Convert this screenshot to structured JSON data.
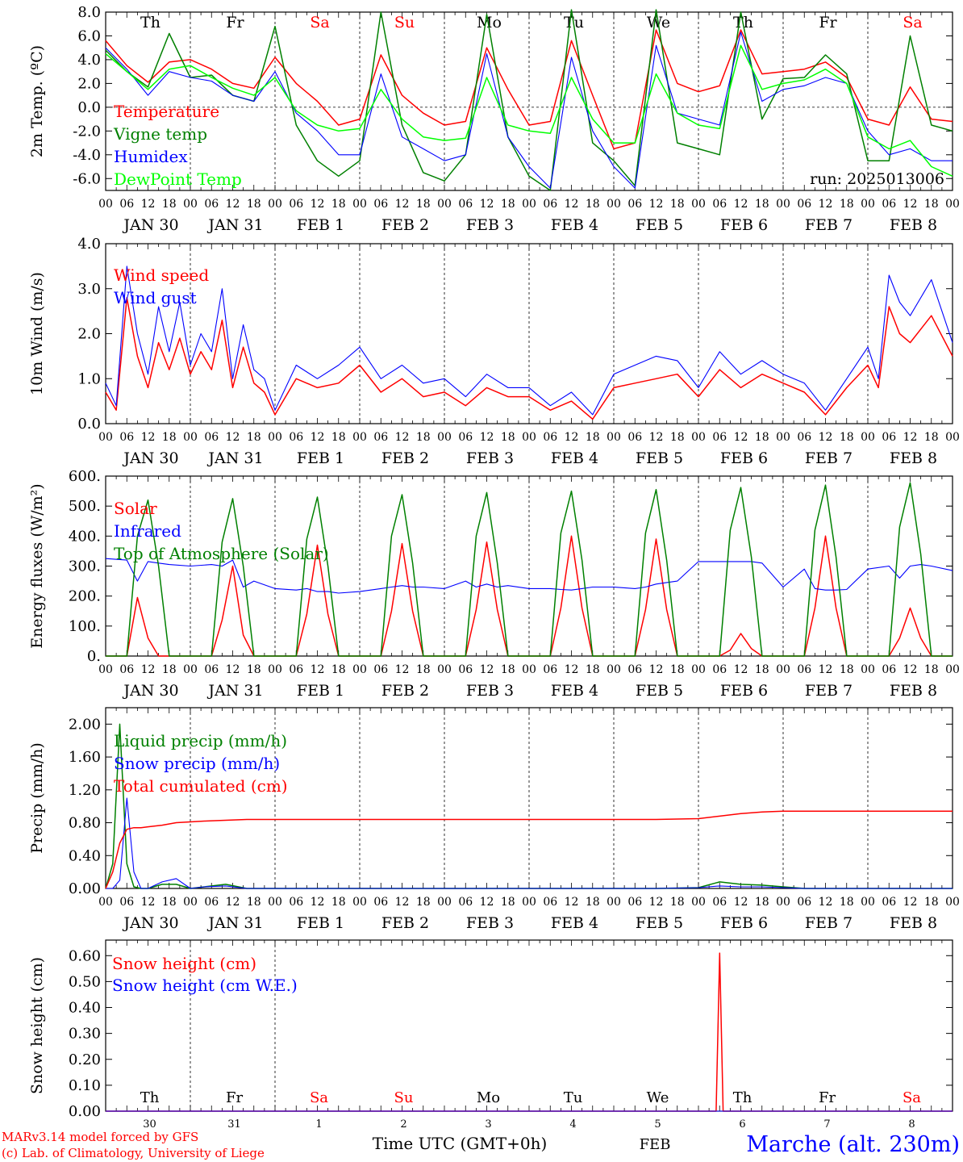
{
  "footer": {
    "model": "MARv3.14 model forced by GFS",
    "copyright": "(c) Lab. of Climatology, University of Liege",
    "xlabel": "Time UTC (GMT+0h)",
    "month": "FEB",
    "station": "Marche (alt. 230m)"
  },
  "days": {
    "weekdays": [
      "Th",
      "Fr",
      "Sa",
      "Su",
      "Mo",
      "Tu",
      "We",
      "Th",
      "Fr",
      "Sa"
    ],
    "weekend_flags": [
      false,
      false,
      true,
      true,
      false,
      false,
      false,
      false,
      false,
      true
    ],
    "date_labels": [
      "JAN 30",
      "JAN 31",
      "FEB 1",
      "FEB 2",
      "FEB 3",
      "FEB 4",
      "FEB 5",
      "FEB 6",
      "FEB 7",
      "FEB 8"
    ],
    "short_dates": [
      "30",
      "31",
      "1",
      "2",
      "3",
      "4",
      "5",
      "6",
      "7",
      "8"
    ],
    "hour_ticks": [
      "00",
      "06",
      "12",
      "18"
    ],
    "final_tick": "00"
  },
  "colors": {
    "red": "#ff0000",
    "green": "#008000",
    "blue": "#0000ff",
    "lightgreen": "#00ff00"
  },
  "chart_data": [
    {
      "type": "line",
      "ylabel": "2m Temp. (ºC)",
      "ylim": [
        -7,
        8
      ],
      "yticks": [
        "8.0",
        "6.0",
        "4.0",
        "2.0",
        "0.0",
        "-2.0",
        "-4.0",
        "-6.0"
      ],
      "ytick_values": [
        8,
        6,
        4,
        2,
        0,
        -2,
        -4,
        -6
      ],
      "annotation": "run: 2025013006",
      "x_hours": [
        0,
        6,
        12,
        18,
        24,
        30,
        36,
        42,
        48,
        54,
        60,
        66,
        72,
        78,
        84,
        90,
        96,
        102,
        108,
        114,
        120,
        126,
        132,
        138,
        144,
        150,
        156,
        162,
        168,
        174,
        180,
        186,
        192,
        198,
        204,
        210,
        216,
        222,
        228,
        234,
        240
      ],
      "series": [
        {
          "name": "Temperature",
          "color": "red",
          "values": [
            5.6,
            3.5,
            2.1,
            3.8,
            4.0,
            3.2,
            2.0,
            1.6,
            4.2,
            2.0,
            0.5,
            -1.5,
            -1.0,
            4.4,
            1.0,
            -0.5,
            -1.5,
            -1.2,
            5.0,
            1.5,
            -1.5,
            -1.2,
            5.6,
            1.0,
            -3.5,
            -3.0,
            6.5,
            2.0,
            1.3,
            1.8,
            6.5,
            2.8,
            3.0,
            3.2,
            3.8,
            2.5,
            -1.0,
            -1.5,
            1.7,
            -1.0,
            -1.2
          ]
        },
        {
          "name": "Vigne temp",
          "color": "green",
          "values": [
            4.8,
            3.0,
            1.7,
            6.2,
            2.5,
            2.7,
            1.0,
            0.5,
            6.8,
            -1.5,
            -4.5,
            -5.8,
            -4.5,
            8.0,
            -1.5,
            -5.5,
            -6.2,
            -4.0,
            7.8,
            -2.5,
            -5.8,
            -7.0,
            8.2,
            -3.0,
            -4.5,
            -6.6,
            8.2,
            -3.0,
            -3.5,
            -4.0,
            8.0,
            -1.0,
            2.4,
            2.5,
            4.4,
            2.8,
            -4.5,
            -4.5,
            6.0,
            -1.5,
            -2.0
          ]
        },
        {
          "name": "Humidex",
          "color": "blue",
          "values": [
            5.0,
            3.2,
            1.0,
            3.0,
            2.5,
            2.2,
            1.0,
            0.5,
            3.0,
            -0.5,
            -2.0,
            -4.0,
            -4.0,
            2.8,
            -2.5,
            -3.5,
            -4.5,
            -4.0,
            4.5,
            -2.5,
            -5.0,
            -6.8,
            4.2,
            -2.0,
            -5.0,
            -6.8,
            5.2,
            -0.5,
            -1.0,
            -1.5,
            6.3,
            0.5,
            1.5,
            1.8,
            2.5,
            2.0,
            -2.0,
            -4.0,
            -3.5,
            -4.5,
            -4.5
          ]
        },
        {
          "name": "DewPoint Temp",
          "color": "lightgreen",
          "values": [
            4.5,
            3.0,
            1.5,
            3.2,
            3.5,
            2.5,
            1.6,
            1.0,
            2.5,
            -0.3,
            -1.5,
            -2.0,
            -1.8,
            1.5,
            -1.0,
            -2.5,
            -2.8,
            -2.6,
            2.5,
            -1.5,
            -2.0,
            -2.2,
            2.5,
            -1.0,
            -3.0,
            -3.0,
            2.8,
            -0.5,
            -1.5,
            -1.8,
            5.2,
            1.5,
            2.0,
            2.3,
            3.2,
            2.0,
            -2.5,
            -3.5,
            -2.8,
            -5.0,
            -5.8
          ]
        }
      ]
    },
    {
      "type": "line",
      "ylabel": "10m Wind (m/s)",
      "ylim": [
        0,
        4
      ],
      "yticks": [
        "4.0",
        "3.0",
        "2.0",
        "1.0",
        "0.0"
      ],
      "ytick_values": [
        4,
        3,
        2,
        1,
        0
      ],
      "x_hours": [
        0,
        3,
        6,
        9,
        12,
        15,
        18,
        21,
        24,
        27,
        30,
        33,
        36,
        39,
        42,
        45,
        48,
        54,
        60,
        66,
        72,
        78,
        84,
        90,
        96,
        102,
        108,
        114,
        120,
        126,
        132,
        138,
        144,
        150,
        156,
        162,
        168,
        174,
        180,
        186,
        192,
        198,
        204,
        210,
        216,
        219,
        222,
        225,
        228,
        234,
        240
      ],
      "series": [
        {
          "name": "Wind speed",
          "color": "red",
          "values": [
            0.7,
            0.3,
            2.8,
            1.5,
            0.8,
            1.8,
            1.2,
            1.9,
            1.1,
            1.6,
            1.2,
            2.3,
            0.8,
            1.7,
            0.9,
            0.7,
            0.2,
            1.0,
            0.8,
            0.9,
            1.3,
            0.7,
            1.0,
            0.6,
            0.7,
            0.4,
            0.8,
            0.6,
            0.6,
            0.3,
            0.5,
            0.1,
            0.8,
            0.9,
            1.0,
            1.1,
            0.6,
            1.2,
            0.8,
            1.1,
            0.9,
            0.7,
            0.2,
            0.8,
            1.3,
            0.8,
            2.6,
            2.0,
            1.8,
            2.4,
            1.5
          ]
        },
        {
          "name": "Wind gust",
          "color": "blue",
          "values": [
            0.9,
            0.4,
            3.5,
            2.0,
            1.1,
            2.6,
            1.6,
            2.7,
            1.3,
            2.0,
            1.6,
            3.0,
            1.0,
            2.2,
            1.2,
            1.0,
            0.3,
            1.3,
            1.0,
            1.3,
            1.7,
            1.0,
            1.3,
            0.9,
            1.0,
            0.6,
            1.1,
            0.8,
            0.8,
            0.4,
            0.7,
            0.2,
            1.1,
            1.3,
            1.5,
            1.4,
            0.8,
            1.6,
            1.1,
            1.4,
            1.1,
            0.9,
            0.3,
            1.0,
            1.7,
            1.0,
            3.3,
            2.7,
            2.4,
            3.2,
            1.8
          ]
        }
      ]
    },
    {
      "type": "line",
      "ylabel": "Energy fluxes (W/m²)",
      "ylim": [
        0,
        600
      ],
      "yticks": [
        "600.",
        "500.",
        "400.",
        "300.",
        "200.",
        "100.",
        "0."
      ],
      "ytick_values": [
        600,
        500,
        400,
        300,
        200,
        100,
        0
      ],
      "x_hours": [
        0,
        6,
        9,
        12,
        15,
        18,
        24,
        30,
        33,
        36,
        39,
        42,
        48,
        54,
        57,
        60,
        63,
        66,
        72,
        78,
        81,
        84,
        87,
        90,
        96,
        102,
        105,
        108,
        111,
        114,
        120,
        126,
        129,
        132,
        135,
        138,
        144,
        150,
        153,
        156,
        159,
        162,
        168,
        174,
        177,
        180,
        183,
        186,
        192,
        198,
        201,
        204,
        207,
        210,
        216,
        222,
        225,
        228,
        231,
        234,
        240
      ],
      "series": [
        {
          "name": "Solar",
          "color": "red",
          "values": [
            0,
            0,
            195,
            60,
            0,
            0,
            0,
            0,
            120,
            300,
            70,
            0,
            0,
            0,
            140,
            370,
            140,
            0,
            0,
            0,
            150,
            375,
            150,
            0,
            0,
            0,
            155,
            380,
            155,
            0,
            0,
            0,
            160,
            400,
            160,
            0,
            0,
            0,
            155,
            390,
            155,
            0,
            0,
            0,
            20,
            75,
            25,
            0,
            0,
            0,
            160,
            400,
            160,
            0,
            0,
            0,
            60,
            160,
            60,
            0,
            0
          ]
        },
        {
          "name": "Infrared",
          "color": "blue",
          "values": [
            325,
            320,
            250,
            315,
            310,
            305,
            300,
            305,
            300,
            320,
            230,
            250,
            225,
            220,
            225,
            215,
            215,
            210,
            215,
            225,
            230,
            235,
            230,
            230,
            225,
            250,
            230,
            240,
            230,
            235,
            225,
            225,
            222,
            220,
            225,
            230,
            230,
            225,
            230,
            240,
            245,
            250,
            315,
            315,
            315,
            315,
            315,
            310,
            230,
            290,
            225,
            220,
            220,
            222,
            290,
            300,
            260,
            300,
            305,
            300,
            285
          ]
        },
        {
          "name": "Top of Atmosphere (Solar)",
          "color": "green",
          "values": [
            0,
            0,
            400,
            520,
            300,
            0,
            0,
            0,
            380,
            525,
            300,
            0,
            0,
            0,
            390,
            530,
            300,
            0,
            0,
            0,
            400,
            538,
            310,
            0,
            0,
            0,
            400,
            545,
            310,
            0,
            0,
            0,
            410,
            550,
            320,
            0,
            0,
            0,
            410,
            555,
            320,
            0,
            0,
            0,
            420,
            562,
            330,
            0,
            0,
            0,
            420,
            570,
            330,
            0,
            0,
            0,
            430,
            578,
            340,
            0,
            0
          ]
        }
      ]
    },
    {
      "type": "line",
      "ylabel": "Precip (mm/h)",
      "ylim": [
        0,
        2.2
      ],
      "yticks": [
        "2.00",
        "1.60",
        "1.20",
        "0.80",
        "0.40",
        "0.00"
      ],
      "ytick_values": [
        2.0,
        1.6,
        1.2,
        0.8,
        0.4,
        0.0
      ],
      "x_hours": [
        0,
        2,
        4,
        6,
        8,
        10,
        12,
        16,
        20,
        24,
        28,
        34,
        40,
        48,
        72,
        96,
        120,
        156,
        168,
        174,
        180,
        186,
        192,
        198,
        204,
        216,
        240
      ],
      "series": [
        {
          "name": "Liquid precip (mm/h)",
          "color": "green",
          "values": [
            0,
            0.3,
            2.0,
            0.3,
            0.02,
            0,
            0,
            0.05,
            0.05,
            0,
            0.02,
            0.05,
            0,
            0,
            0,
            0,
            0,
            0,
            0.01,
            0.08,
            0.05,
            0.04,
            0.02,
            0,
            0,
            0,
            0
          ]
        },
        {
          "name": "Snow precip (mm/h)",
          "color": "blue",
          "values": [
            0,
            0,
            0.1,
            1.1,
            0.2,
            0,
            0,
            0.08,
            0.12,
            0,
            0.02,
            0.03,
            0,
            0,
            0,
            0,
            0,
            0,
            0.01,
            0.03,
            0.02,
            0.02,
            0.01,
            0,
            0,
            0,
            0
          ]
        },
        {
          "name": "Total cumulated (cm)",
          "color": "red",
          "values": [
            0,
            0.2,
            0.55,
            0.72,
            0.74,
            0.74,
            0.75,
            0.77,
            0.8,
            0.81,
            0.82,
            0.83,
            0.84,
            0.84,
            0.84,
            0.84,
            0.84,
            0.84,
            0.85,
            0.88,
            0.91,
            0.93,
            0.94,
            0.94,
            0.94,
            0.94,
            0.94
          ]
        }
      ]
    },
    {
      "type": "line",
      "ylabel": "Snow height (cm)",
      "ylim": [
        0,
        0.66
      ],
      "yticks": [
        "0.60",
        "0.50",
        "0.40",
        "0.30",
        "0.20",
        "0.10",
        "0.00"
      ],
      "ytick_values": [
        0.6,
        0.5,
        0.4,
        0.3,
        0.2,
        0.1,
        0.0
      ],
      "x_hours": [
        0,
        171,
        173,
        174,
        175,
        177,
        240
      ],
      "series": [
        {
          "name": "Snow height (cm)",
          "color": "red",
          "values": [
            0,
            0,
            0,
            0.61,
            0,
            0,
            0
          ]
        },
        {
          "name": "Snow height (cm W.E.)",
          "color": "blue",
          "values": [
            0,
            0,
            0,
            0,
            0,
            0,
            0
          ]
        }
      ]
    }
  ]
}
